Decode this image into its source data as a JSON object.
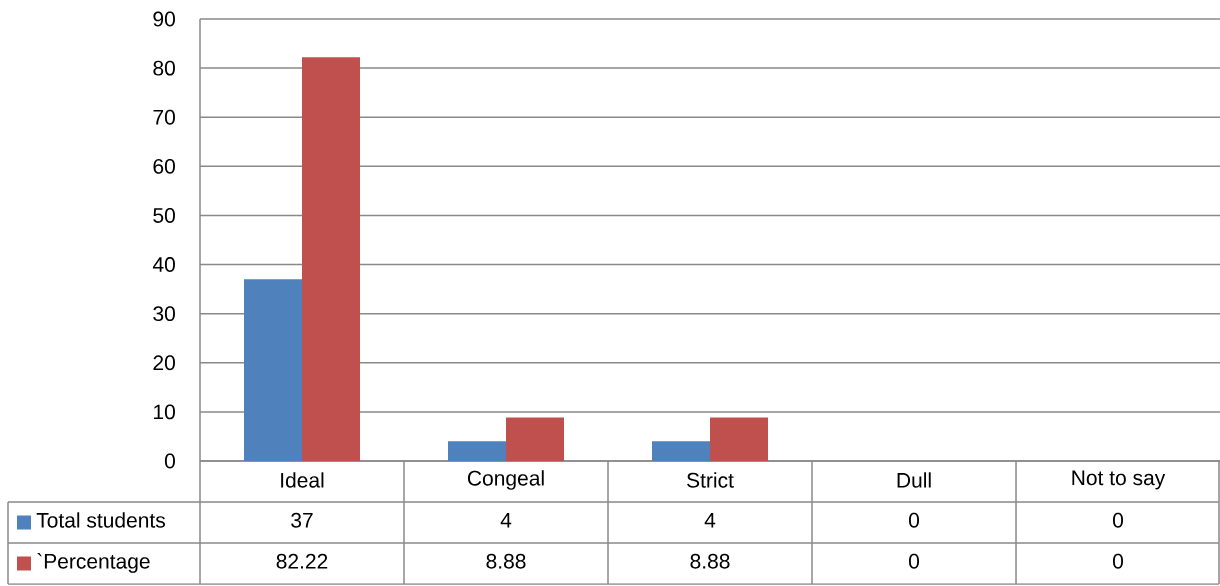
{
  "chart_data": {
    "type": "bar",
    "categories": [
      "Ideal",
      "Congeal",
      "Strict",
      "Dull",
      "Not to say"
    ],
    "series": [
      {
        "name": "Total students",
        "color": "#4f81bd",
        "values": [
          37,
          4,
          4,
          0,
          0
        ]
      },
      {
        "name": "`Percentage",
        "color": "#c0504d",
        "values": [
          82.22,
          8.88,
          8.88,
          0,
          0
        ]
      }
    ],
    "ylim": [
      0,
      90
    ],
    "yticks": [
      0,
      10,
      20,
      30,
      40,
      50,
      60,
      70,
      80,
      90
    ],
    "grid": "y",
    "legend": "bottom left",
    "data_labels": true
  }
}
